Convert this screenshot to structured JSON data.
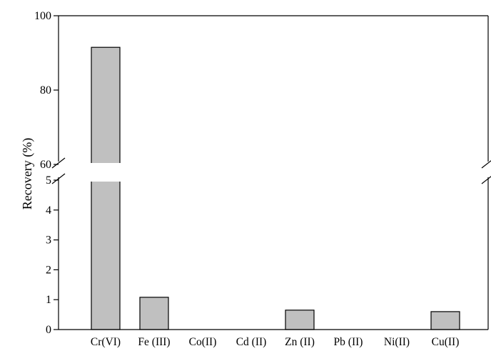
{
  "chart_data": {
    "type": "bar",
    "ylabel": "Recovery (%)",
    "xlabel": "",
    "title": "",
    "categories": [
      "Cr(VI)",
      "Fe (III)",
      "Co(II)",
      "Cd (II)",
      "Zn (II)",
      "Pb (II)",
      "Ni(II)",
      "Cu(II)"
    ],
    "values": [
      91.5,
      1.08,
      0,
      0,
      0.65,
      0,
      0,
      0.6
    ],
    "y_axis_break": true,
    "y_segments": [
      {
        "range": [
          0,
          5
        ],
        "ticks": [
          "0",
          "1",
          "2",
          "3",
          "4",
          "5"
        ],
        "tick_values": [
          0,
          1,
          2,
          3,
          4,
          5
        ]
      },
      {
        "range": [
          60,
          100
        ],
        "ticks": [
          "60",
          "80",
          "100"
        ],
        "tick_values": [
          60,
          80,
          100
        ]
      }
    ],
    "bar_color": "#c0c0c0",
    "grid": false,
    "legend": "none"
  }
}
